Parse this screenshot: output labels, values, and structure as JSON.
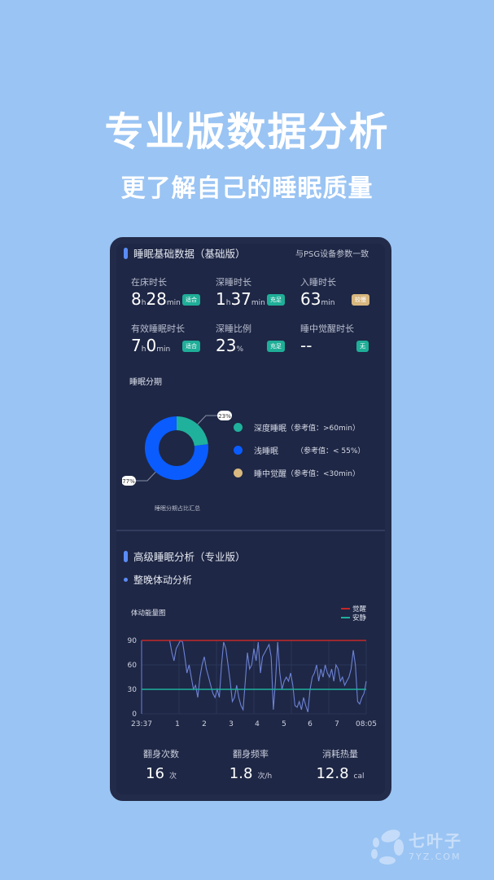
{
  "headline": "专业版数据分析",
  "subhead": "更了解自己的睡眠质量",
  "basic": {
    "title": "睡眠基础数据（基础版）",
    "note": "与PSG设备参数一致",
    "metrics": [
      {
        "label": "在床时长",
        "h": "8",
        "hu": "h",
        "m": "28",
        "mu": "min",
        "badge": "适合",
        "badge_color": "#1fae98"
      },
      {
        "label": "深睡时长",
        "h": "1",
        "hu": "h",
        "m": "37",
        "mu": "min",
        "badge": "充足",
        "badge_color": "#1fae98"
      },
      {
        "label": "入睡时长",
        "h": "",
        "hu": "",
        "m": "63",
        "mu": "min",
        "badge": "较慢",
        "badge_color": "#d8b77f"
      },
      {
        "label": "有效睡眠时长",
        "h": "7",
        "hu": "h",
        "m": "0",
        "mu": "min",
        "badge": "适合",
        "badge_color": "#1fae98"
      },
      {
        "label": "深睡比例",
        "h": "",
        "hu": "",
        "m": "23",
        "mu": "%",
        "badge": "充足",
        "badge_color": "#1fae98"
      },
      {
        "label": "睡中觉醒时长",
        "h": "",
        "hu": "",
        "m": "--",
        "mu": "",
        "badge": "无",
        "badge_color": "#1fae98"
      }
    ],
    "stages_title": "睡眠分期",
    "donut": {
      "slices": [
        {
          "value": 23,
          "label": "23%",
          "color": "#1fb19c"
        },
        {
          "value": 77,
          "label": "77%",
          "color": "#0a5cff"
        }
      ],
      "caption": "睡眠分期占比汇总"
    },
    "legend": [
      {
        "name": "深度睡眠",
        "ref": "（参考值：>60min）",
        "color": "#1fb19c"
      },
      {
        "name": "浅睡眠",
        "ref": "（参考值：<  55%）",
        "color": "#0a5cff"
      },
      {
        "name": "睡中觉醒",
        "ref": "（参考值：<30min）",
        "color": "#d9b97f"
      }
    ]
  },
  "advanced": {
    "title": "高级睡眠分析（专业版）",
    "subtitle": "整晚体动分析"
  },
  "chart_data": {
    "type": "line",
    "title": "体动能量图",
    "x_ticks": [
      "23:37",
      "1",
      "2",
      "3",
      "4",
      "5",
      "6",
      "7",
      "08:05"
    ],
    "y_ticks": [
      0,
      30,
      60,
      90
    ],
    "ylim": [
      0,
      90
    ],
    "grid": true,
    "legend_position": "top-right",
    "thresholds": [
      {
        "name": "觉醒",
        "value": 90,
        "color": "#c62828"
      },
      {
        "name": "安静",
        "value": 30,
        "color": "#1fb19c"
      }
    ],
    "series": [
      {
        "color": "#6d82d6",
        "values": [
          null,
          null,
          null,
          null,
          null,
          null,
          null,
          null,
          null,
          null,
          null,
          null,
          null,
          90,
          75,
          65,
          80,
          85,
          90,
          88,
          70,
          50,
          60,
          45,
          30,
          35,
          20,
          45,
          60,
          70,
          55,
          45,
          35,
          25,
          20,
          30,
          20,
          60,
          88,
          80,
          60,
          40,
          15,
          20,
          35,
          20,
          10,
          5,
          40,
          75,
          55,
          60,
          80,
          65,
          88,
          50,
          70,
          75,
          80,
          85,
          70,
          5,
          40,
          88,
          50,
          30,
          40,
          45,
          40,
          50,
          35,
          10,
          8,
          15,
          5,
          20,
          10,
          2,
          30,
          45,
          50,
          60,
          40,
          55,
          45,
          60,
          50,
          45,
          55,
          40,
          60,
          55,
          40,
          45,
          35,
          40,
          45,
          55,
          78,
          60,
          15,
          12,
          20,
          25,
          40
        ]
      }
    ]
  },
  "footer": [
    {
      "label": "翻身次数",
      "value": "16",
      "unit": "次"
    },
    {
      "label": "翻身频率",
      "value": "1.8",
      "unit": "次/h"
    },
    {
      "label": "消耗热量",
      "value": "12.8",
      "unit": "cal"
    }
  ],
  "watermark": {
    "name": "七叶子",
    "domain": "7YZ.COM"
  }
}
